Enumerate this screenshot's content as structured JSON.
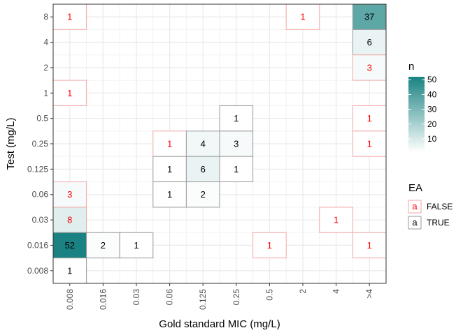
{
  "chart_data": {
    "type": "heatmap",
    "xlabel": "Gold standard MIC (mg/L)",
    "ylabel": "Test (mg/L)",
    "x_categories": [
      "0.008",
      "0.016",
      "0.03",
      "0.06",
      "0.125",
      "0.25",
      "0.5",
      "2",
      "4",
      ">4"
    ],
    "y_categories": [
      "0.008",
      "0.016",
      "0.03",
      "0.06",
      "0.125",
      "0.25",
      "0.5",
      "1",
      "2",
      "4",
      "8"
    ],
    "cells": [
      {
        "x": "0.008",
        "y": "8",
        "n": 1,
        "ea": "FALSE"
      },
      {
        "x": "0.008",
        "y": "1",
        "n": 1,
        "ea": "FALSE"
      },
      {
        "x": "0.008",
        "y": "0.06",
        "n": 3,
        "ea": "FALSE"
      },
      {
        "x": "0.008",
        "y": "0.03",
        "n": 8,
        "ea": "FALSE"
      },
      {
        "x": "0.008",
        "y": "0.016",
        "n": 52,
        "ea": "TRUE"
      },
      {
        "x": "0.008",
        "y": "0.008",
        "n": 1,
        "ea": "TRUE"
      },
      {
        "x": "0.016",
        "y": "0.016",
        "n": 2,
        "ea": "TRUE"
      },
      {
        "x": "0.03",
        "y": "0.016",
        "n": 1,
        "ea": "TRUE"
      },
      {
        "x": "0.06",
        "y": "0.25",
        "n": 1,
        "ea": "FALSE"
      },
      {
        "x": "0.06",
        "y": "0.125",
        "n": 1,
        "ea": "TRUE"
      },
      {
        "x": "0.06",
        "y": "0.06",
        "n": 1,
        "ea": "TRUE"
      },
      {
        "x": "0.125",
        "y": "0.25",
        "n": 4,
        "ea": "TRUE"
      },
      {
        "x": "0.125",
        "y": "0.125",
        "n": 6,
        "ea": "TRUE"
      },
      {
        "x": "0.125",
        "y": "0.06",
        "n": 2,
        "ea": "TRUE"
      },
      {
        "x": "0.25",
        "y": "0.5",
        "n": 1,
        "ea": "TRUE"
      },
      {
        "x": "0.25",
        "y": "0.25",
        "n": 3,
        "ea": "TRUE"
      },
      {
        "x": "0.25",
        "y": "0.125",
        "n": 1,
        "ea": "TRUE"
      },
      {
        "x": "0.5",
        "y": "0.016",
        "n": 1,
        "ea": "FALSE"
      },
      {
        "x": "2",
        "y": "8",
        "n": 1,
        "ea": "FALSE"
      },
      {
        "x": "4",
        "y": "0.03",
        "n": 1,
        "ea": "FALSE"
      },
      {
        "x": ">4",
        "y": "8",
        "n": 37,
        "ea": "TRUE"
      },
      {
        "x": ">4",
        "y": "4",
        "n": 6,
        "ea": "TRUE"
      },
      {
        "x": ">4",
        "y": "2",
        "n": 3,
        "ea": "FALSE"
      },
      {
        "x": ">4",
        "y": "0.5",
        "n": 1,
        "ea": "FALSE"
      },
      {
        "x": ">4",
        "y": "0.25",
        "n": 1,
        "ea": "FALSE"
      },
      {
        "x": ">4",
        "y": "0.016",
        "n": 1,
        "ea": "FALSE"
      }
    ],
    "fill_scale": {
      "title": "n",
      "min": 1,
      "max": 52,
      "low_color": "#ffffff",
      "high_color": "#1a8282",
      "breaks": [
        10,
        20,
        30,
        40,
        50
      ]
    },
    "legend_ea": {
      "title": "EA",
      "items": [
        {
          "symbol": "a",
          "label": "FALSE",
          "color": "#ff0000",
          "border": "#f4a6a6"
        },
        {
          "symbol": "a",
          "label": "TRUE",
          "color": "#000000",
          "border": "#999999"
        }
      ]
    },
    "grid": true,
    "legend_position": "right"
  }
}
